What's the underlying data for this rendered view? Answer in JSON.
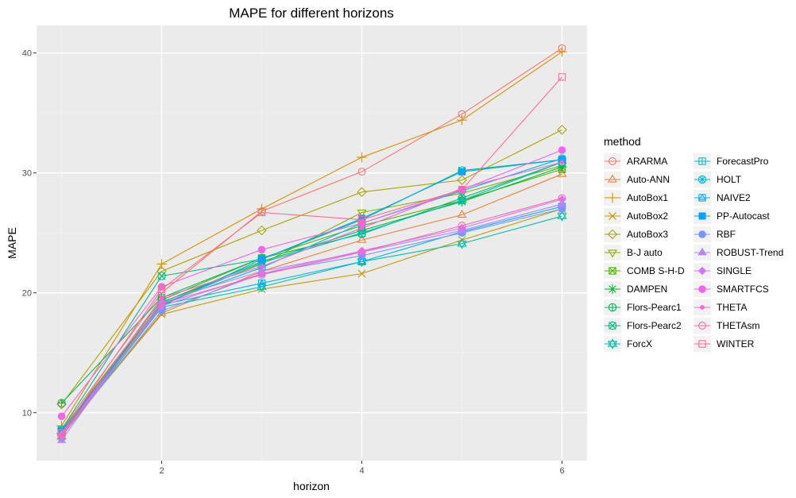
{
  "chart_data": {
    "type": "line",
    "title": "MAPE for different horizons",
    "xlabel": "horizon",
    "ylabel": "MAPE",
    "xlim": [
      0.75,
      6.25
    ],
    "ylim": [
      6.0,
      42.3
    ],
    "xticks": [
      2,
      4,
      6
    ],
    "yticks": [
      10,
      20,
      30,
      40
    ],
    "grid": true,
    "legend": {
      "title": "method",
      "position": "right",
      "columns": 2
    },
    "x": [
      1,
      2,
      3,
      4,
      5,
      6
    ],
    "series": [
      {
        "name": "ARARMA",
        "color": "#F8766D",
        "shape": "circle-open",
        "values": [
          8.6,
          20.0,
          26.8,
          30.1,
          34.9,
          40.4
        ]
      },
      {
        "name": "Auto-ANN",
        "color": "#EB8335",
        "shape": "triangle-open",
        "values": [
          8.3,
          18.3,
          21.8,
          24.4,
          26.5,
          29.9
        ]
      },
      {
        "name": "AutoBox1",
        "color": "#DA8F00",
        "shape": "plus",
        "values": [
          8.9,
          22.4,
          27.0,
          31.3,
          34.4,
          40.1
        ]
      },
      {
        "name": "AutoBox2",
        "color": "#C49A00",
        "shape": "cross",
        "values": [
          8.2,
          18.2,
          20.3,
          21.6,
          24.4,
          27.0
        ]
      },
      {
        "name": "AutoBox3",
        "color": "#A9A400",
        "shape": "diamond-open",
        "values": [
          10.7,
          21.8,
          25.2,
          28.4,
          29.4,
          33.6
        ]
      },
      {
        "name": "B-J auto",
        "color": "#86AC00",
        "shape": "triangle-down-open",
        "values": [
          8.5,
          19.2,
          22.4,
          26.7,
          28.3,
          30.6
        ]
      },
      {
        "name": "COMB S-H-D",
        "color": "#53B400",
        "shape": "square-cross",
        "values": [
          8.5,
          19.4,
          22.9,
          25.6,
          27.7,
          30.3
        ]
      },
      {
        "name": "DAMPEN",
        "color": "#00BA38",
        "shape": "asterisk",
        "values": [
          8.3,
          19.2,
          22.6,
          25.2,
          27.6,
          30.5
        ]
      },
      {
        "name": "Flors-Pearc1",
        "color": "#00BD5C",
        "shape": "circle-plus",
        "values": [
          10.8,
          19.6,
          22.9,
          24.9,
          27.9,
          30.9
        ]
      },
      {
        "name": "Flors-Pearc2",
        "color": "#00C083",
        "shape": "circle-cross",
        "values": [
          8.6,
          21.4,
          22.8,
          26.1,
          30.2,
          31.1
        ]
      },
      {
        "name": "ForcX",
        "color": "#00C1A7",
        "shape": "star-david",
        "values": [
          8.0,
          18.8,
          20.5,
          22.6,
          24.1,
          26.4
        ]
      },
      {
        "name": "ForecastPro",
        "color": "#00BFC4",
        "shape": "square-plus",
        "values": [
          8.5,
          19.0,
          22.5,
          25.0,
          27.7,
          30.9
        ]
      },
      {
        "name": "HOLT",
        "color": "#00BBDB",
        "shape": "circle-x",
        "values": [
          8.2,
          19.1,
          22.1,
          25.8,
          28.5,
          31.2
        ]
      },
      {
        "name": "NAIVE2",
        "color": "#00B4EF",
        "shape": "triangle-square",
        "values": [
          8.2,
          19.0,
          20.8,
          22.6,
          25.1,
          27.2
        ]
      },
      {
        "name": "PP-Autocast",
        "color": "#00A5FF",
        "shape": "square-filled",
        "values": [
          8.5,
          18.9,
          22.8,
          26.2,
          30.1,
          31.1
        ]
      },
      {
        "name": "RBF",
        "color": "#7997FF",
        "shape": "circle-filled",
        "values": [
          8.0,
          18.5,
          21.6,
          23.1,
          25.0,
          27.0
        ]
      },
      {
        "name": "ROBUST-Trend",
        "color": "#B186FF",
        "shape": "triangle-filled",
        "values": [
          7.7,
          19.3,
          21.8,
          23.4,
          25.2,
          27.4
        ]
      },
      {
        "name": "SINGLE",
        "color": "#D575FE",
        "shape": "diamond-filled",
        "values": [
          8.2,
          18.9,
          21.6,
          23.5,
          25.4,
          27.8
        ]
      },
      {
        "name": "SMARTFCS",
        "color": "#EE67EB",
        "shape": "circle-filled",
        "values": [
          9.7,
          20.5,
          23.6,
          25.8,
          28.6,
          31.9
        ]
      },
      {
        "name": "THETA",
        "color": "#F962DD",
        "shape": "dot",
        "values": [
          8.1,
          19.6,
          22.2,
          25.4,
          28.7,
          30.9
        ]
      },
      {
        "name": "THETAsm",
        "color": "#FF65AC",
        "shape": "circle-open",
        "values": [
          8.0,
          19.1,
          21.5,
          23.4,
          25.6,
          27.9
        ]
      },
      {
        "name": "WINTER",
        "color": "#FF6C91",
        "shape": "square-open",
        "values": [
          8.3,
          20.3,
          26.7,
          26.1,
          28.6,
          38.0
        ]
      }
    ]
  }
}
